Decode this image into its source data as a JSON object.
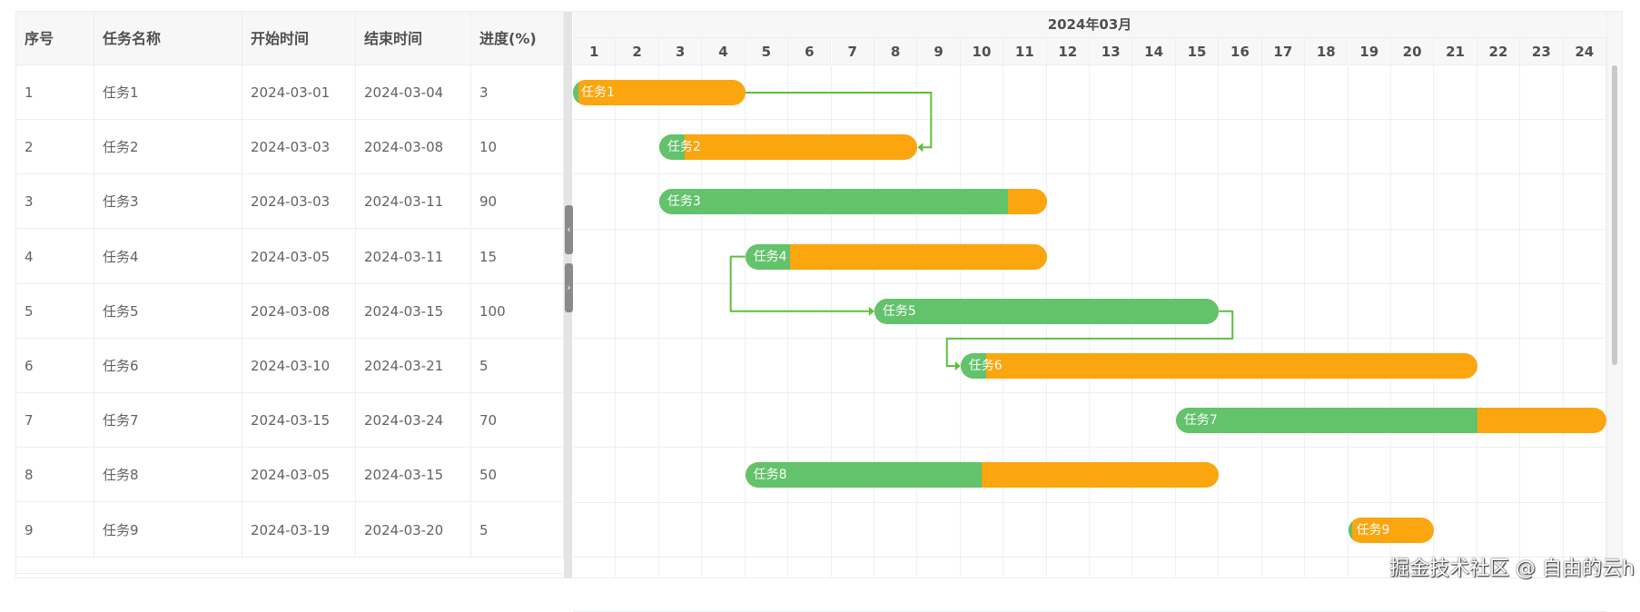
{
  "columns": [
    "序号",
    "任务名称",
    "开始时间",
    "结束时间",
    "进度(%)"
  ],
  "month_label": "2024年03月",
  "days": [
    "1",
    "2",
    "3",
    "4",
    "5",
    "6",
    "7",
    "8",
    "9",
    "10",
    "11",
    "12",
    "13",
    "14",
    "15",
    "16",
    "17",
    "18",
    "19",
    "20",
    "21",
    "22",
    "23",
    "24"
  ],
  "tasks": [
    {
      "id": "1",
      "name": "任务1",
      "start": "2024-03-01",
      "end": "2024-03-04",
      "progress": "3"
    },
    {
      "id": "2",
      "name": "任务2",
      "start": "2024-03-03",
      "end": "2024-03-08",
      "progress": "10"
    },
    {
      "id": "3",
      "name": "任务3",
      "start": "2024-03-03",
      "end": "2024-03-11",
      "progress": "90"
    },
    {
      "id": "4",
      "name": "任务4",
      "start": "2024-03-05",
      "end": "2024-03-11",
      "progress": "15"
    },
    {
      "id": "5",
      "name": "任务5",
      "start": "2024-03-08",
      "end": "2024-03-15",
      "progress": "100"
    },
    {
      "id": "6",
      "name": "任务6",
      "start": "2024-03-10",
      "end": "2024-03-21",
      "progress": "5"
    },
    {
      "id": "7",
      "name": "任务7",
      "start": "2024-03-15",
      "end": "2024-03-24",
      "progress": "70"
    },
    {
      "id": "8",
      "name": "任务8",
      "start": "2024-03-05",
      "end": "2024-03-15",
      "progress": "50"
    },
    {
      "id": "9",
      "name": "任务9",
      "start": "2024-03-19",
      "end": "2024-03-20",
      "progress": "5"
    }
  ],
  "links": [
    {
      "from": 1,
      "to": 2,
      "type": "finish-to-finish"
    },
    {
      "from": 4,
      "to": 5,
      "type": "start-to-start"
    },
    {
      "from": 5,
      "to": 6,
      "type": "finish-to-start"
    }
  ],
  "colors": {
    "progress": "#63c26c",
    "remaining": "#fba50f",
    "link": "#5cbf3c"
  },
  "splitter": {
    "collapse_icon": "chevron-left-icon",
    "expand_icon": "chevron-right-icon",
    "collapse": "‹",
    "expand": "›"
  },
  "watermark": "掘金技术社区 @ 自由的云h"
}
